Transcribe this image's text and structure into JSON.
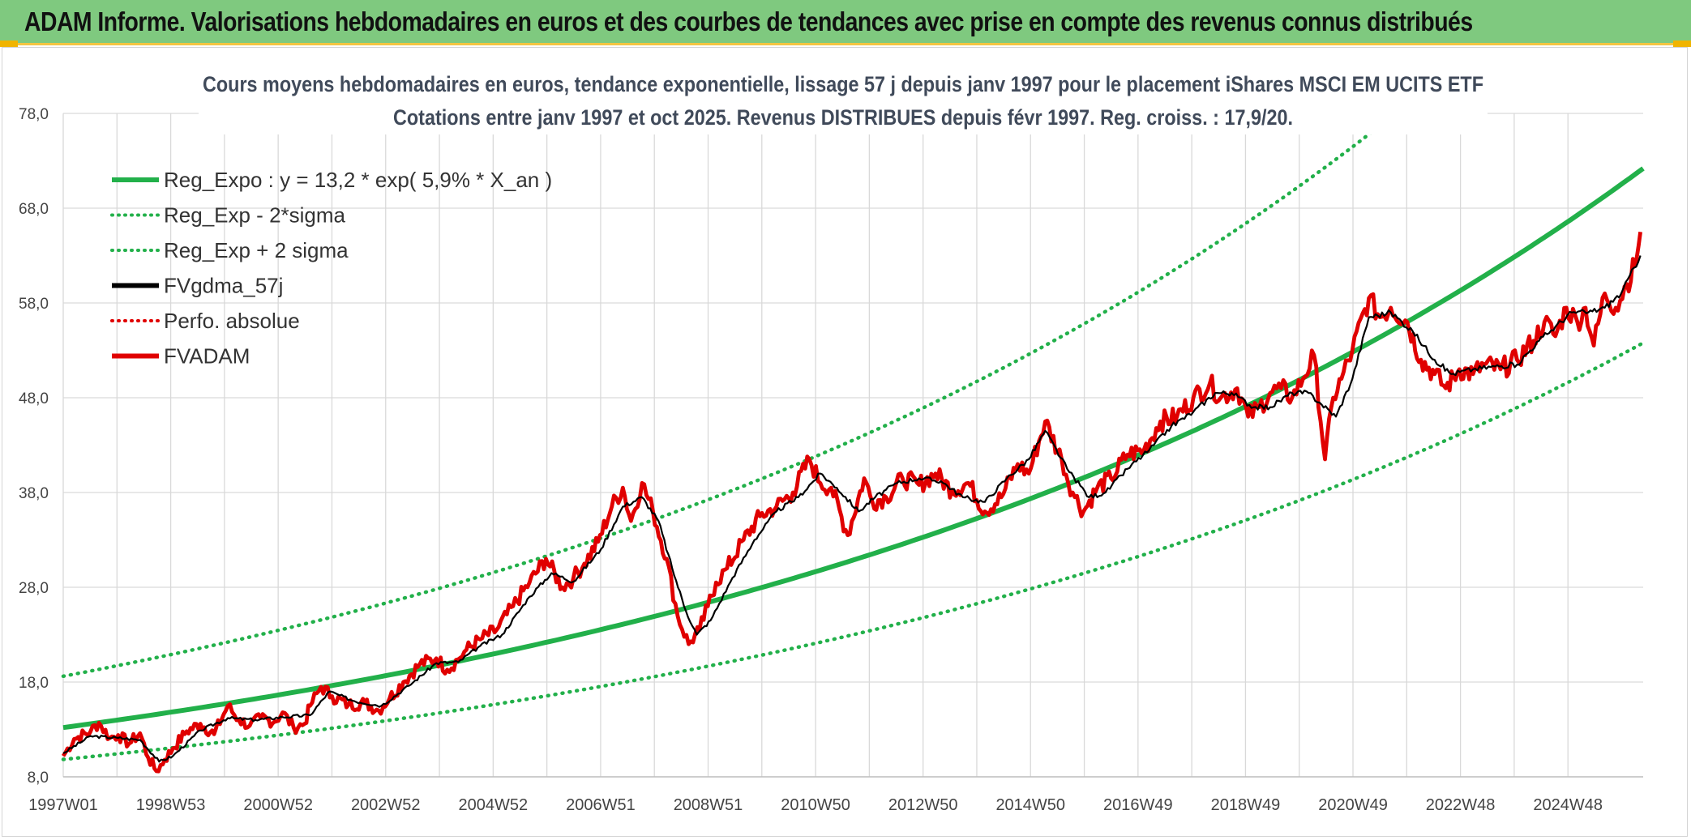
{
  "banner": {
    "title": "ADAM Informe. Valorisations hebdomadaires en euros et des courbes de tendances avec prise en compte des revenus connus distribués"
  },
  "chart_data": {
    "type": "line",
    "title_line1": "Cours moyens hebdomadaires en euros, tendance exponentielle, lissage 57 j depuis janv 1997 pour le placement iShares MSCI EM UCITS ETF",
    "title_line2": "Cotations entre janv 1997 et oct 2025. Revenus DISTRIBUES depuis févr 1997. Reg. croiss. : 17,9/20.",
    "ylim": [
      8,
      78
    ],
    "y_ticks": [
      "78,0",
      "68,0",
      "58,0",
      "48,0",
      "38,0",
      "28,0",
      "18,0",
      "8,0"
    ],
    "x_tick_labels": [
      "1997W01",
      "1998W53",
      "2000W52",
      "2002W52",
      "2004W52",
      "2006W51",
      "2008W51",
      "2010W50",
      "2012W50",
      "2014W50",
      "2016W49",
      "2018W49",
      "2020W49",
      "2022W48",
      "2024W48"
    ],
    "x_range": [
      1997.0,
      2025.8
    ],
    "legend": [
      {
        "label": "Reg_Expo : y = 13,2 * exp( 5,9% *  X_an )",
        "color": "#22b04a",
        "style": "solid"
      },
      {
        "label": "Reg_Exp - 2*sigma",
        "color": "#22b04a",
        "style": "dotted"
      },
      {
        "label": "Reg_Exp + 2 sigma",
        "color": "#22b04a",
        "style": "dotted"
      },
      {
        "label": "FVgdma_57j",
        "color": "#000000",
        "style": "solid"
      },
      {
        "label": "Perfo. absolue",
        "color": "#e00000",
        "style": "dotted"
      },
      {
        "label": "FVADAM",
        "color": "#e00000",
        "style": "solid"
      }
    ],
    "series": [
      {
        "name": "FVADAM",
        "color": "#e00000",
        "x": [
          1997.0,
          1997.2,
          1997.5,
          1997.65,
          1997.85,
          1998.0,
          1998.2,
          1998.4,
          1998.55,
          1998.7,
          1998.85,
          1999.0,
          1999.25,
          1999.5,
          1999.75,
          2000.0,
          2000.2,
          2000.4,
          2000.6,
          2000.85,
          2001.0,
          2001.2,
          2001.4,
          2001.5,
          2001.7,
          2001.9,
          2002.2,
          2002.5,
          2002.75,
          2002.95,
          2003.2,
          2003.5,
          2003.8,
          2004.0,
          2004.2,
          2004.35,
          2004.6,
          2004.9,
          2005.2,
          2005.5,
          2005.8,
          2006.1,
          2006.3,
          2006.5,
          2006.75,
          2007.0,
          2007.2,
          2007.35,
          2007.55,
          2007.75,
          2008.0,
          2008.2,
          2008.4,
          2008.6,
          2008.75,
          2008.9,
          2009.1,
          2009.4,
          2009.7,
          2010.0,
          2010.3,
          2010.6,
          2010.8,
          2011.0,
          2011.3,
          2011.6,
          2011.75,
          2012.0,
          2012.3,
          2012.6,
          2012.9,
          2013.2,
          2013.5,
          2013.8,
          2014.1,
          2014.4,
          2014.6,
          2014.9,
          2015.2,
          2015.4,
          2015.6,
          2015.85,
          2016.1,
          2016.4,
          2016.7,
          2017.0,
          2017.3,
          2017.6,
          2017.9,
          2018.1,
          2018.4,
          2018.6,
          2018.8,
          2019.0,
          2019.2,
          2019.4,
          2019.6,
          2019.8,
          2020.0,
          2020.15,
          2020.3,
          2020.5,
          2020.8,
          2021.0,
          2021.2,
          2021.5,
          2021.75,
          2022.0,
          2022.2,
          2022.45,
          2022.7,
          2022.9,
          2023.2,
          2023.5,
          2023.8,
          2024.0,
          2024.2,
          2024.4,
          2024.6,
          2024.75,
          2024.9,
          2025.1,
          2025.3,
          2025.5,
          2025.65,
          2025.75
        ],
        "y": [
          10.2,
          12.0,
          12.8,
          13.7,
          12.1,
          12.4,
          11.5,
          12.6,
          10.0,
          8.6,
          9.8,
          11.0,
          12.8,
          13.6,
          12.5,
          15.5,
          14.0,
          13.4,
          14.2,
          13.8,
          14.8,
          13.2,
          13.6,
          15.5,
          17.5,
          16.5,
          15.6,
          15.8,
          15.0,
          16.3,
          18.0,
          19.9,
          20.5,
          19.3,
          20.4,
          21.4,
          22.5,
          23.5,
          26.0,
          28.5,
          31.0,
          28.0,
          29.0,
          30.5,
          32.8,
          36.5,
          38.5,
          35.0,
          39.0,
          36.0,
          31.0,
          25.0,
          22.0,
          23.5,
          26.0,
          28.5,
          30.0,
          33.0,
          35.5,
          36.5,
          38.0,
          41.5,
          39.0,
          38.5,
          33.5,
          39.5,
          37.0,
          37.5,
          39.5,
          38.8,
          40.0,
          38.2,
          39.0,
          36.0,
          37.5,
          41.0,
          40.0,
          45.5,
          41.5,
          38.0,
          36.0,
          38.5,
          39.5,
          42.0,
          42.5,
          45.5,
          46.0,
          48.0,
          49.5,
          48.0,
          49.0,
          46.0,
          47.0,
          48.5,
          49.0,
          48.0,
          50.0,
          52.5,
          41.5,
          48.0,
          50.0,
          53.0,
          58.5,
          56.5,
          57.5,
          56.0,
          52.0,
          50.5,
          49.0,
          51.0,
          50.5,
          51.5,
          51.0,
          52.0,
          54.0,
          56.0,
          54.5,
          57.5,
          56.0,
          57.5,
          53.5,
          59.0,
          57.5,
          60.0,
          62.0,
          65.5
        ]
      },
      {
        "name": "FVgdma_57j",
        "color": "#000000",
        "x": [
          1997.0,
          1997.5,
          1998.0,
          1998.4,
          1998.75,
          1999.0,
          1999.5,
          2000.0,
          2000.5,
          2001.0,
          2001.5,
          2001.85,
          2002.3,
          2002.8,
          2003.3,
          2003.8,
          2004.2,
          2004.6,
          2005.0,
          2005.5,
          2005.9,
          2006.3,
          2006.8,
          2007.2,
          2007.55,
          2007.85,
          2008.1,
          2008.35,
          2008.55,
          2008.8,
          2009.2,
          2009.6,
          2010.0,
          2010.4,
          2010.8,
          2011.1,
          2011.5,
          2011.8,
          2012.2,
          2012.6,
          2013.0,
          2013.4,
          2013.8,
          2014.2,
          2014.6,
          2014.9,
          2015.3,
          2015.7,
          2016.0,
          2016.4,
          2016.8,
          2017.2,
          2017.6,
          2018.0,
          2018.3,
          2018.7,
          2019.0,
          2019.4,
          2019.7,
          2019.9,
          2020.2,
          2020.5,
          2020.8,
          2021.2,
          2021.6,
          2022.0,
          2022.3,
          2022.7,
          2023.1,
          2023.5,
          2023.9,
          2024.2,
          2024.5,
          2024.8,
          2025.1,
          2025.4,
          2025.75
        ],
        "y": [
          10.5,
          12.3,
          12.1,
          11.9,
          9.6,
          10.2,
          12.9,
          14.2,
          14.0,
          14.3,
          14.5,
          17.0,
          16.0,
          15.5,
          17.6,
          20.0,
          20.1,
          21.8,
          23.0,
          27.0,
          29.5,
          28.6,
          32.0,
          36.5,
          37.5,
          35.0,
          30.0,
          25.5,
          23.0,
          24.5,
          29.0,
          33.0,
          36.0,
          37.5,
          40.0,
          38.5,
          36.0,
          37.5,
          39.0,
          39.5,
          39.2,
          37.5,
          37.0,
          39.5,
          41.5,
          44.5,
          40.5,
          37.5,
          38.0,
          40.5,
          42.5,
          45.0,
          46.5,
          48.5,
          48.5,
          47.0,
          47.0,
          48.5,
          48.5,
          47.5,
          46.0,
          50.0,
          56.5,
          57.0,
          55.0,
          52.0,
          50.5,
          51.0,
          51.3,
          51.5,
          54.0,
          55.5,
          57.0,
          57.0,
          57.5,
          59.0,
          63.0
        ]
      }
    ]
  }
}
